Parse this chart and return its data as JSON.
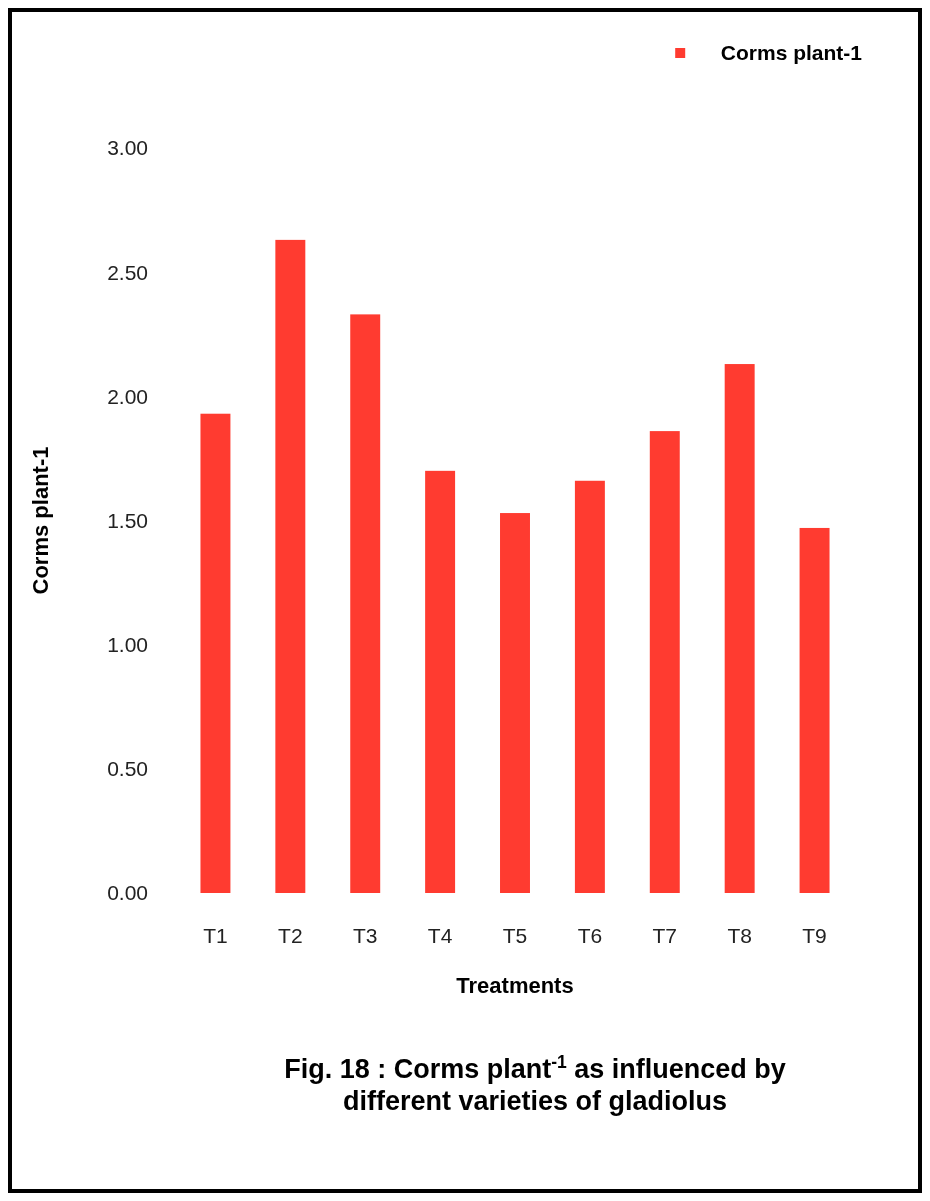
{
  "chart_data": {
    "type": "bar",
    "title": "Fig. 18 : Corms plant$^{-1}$ as influenced by different varieties of  gladiolus",
    "xlabel": "Treatments",
    "ylabel": "Corms  plant-1",
    "categories": [
      "T1",
      "T2",
      "T3",
      "T4",
      "T5",
      "T6",
      "T7",
      "T8",
      "T9"
    ],
    "series": [
      {
        "name": "Corms  plant-1",
        "color": "#ff3b30",
        "values": [
          1.93,
          2.63,
          2.33,
          1.7,
          1.53,
          1.66,
          1.86,
          2.13,
          1.47
        ]
      }
    ],
    "ylim": [
      0,
      3
    ],
    "yticks": [
      {
        "value": 0,
        "label": "0.00"
      },
      {
        "value": 0.5,
        "label": "0.50"
      },
      {
        "value": 1,
        "label": "1.00"
      },
      {
        "value": 1.5,
        "label": "1.50"
      },
      {
        "value": 2,
        "label": "2.00"
      },
      {
        "value": 2.5,
        "label": "2.50"
      },
      {
        "value": 3,
        "label": "3.00"
      }
    ],
    "grid": false,
    "legend": "top right"
  }
}
